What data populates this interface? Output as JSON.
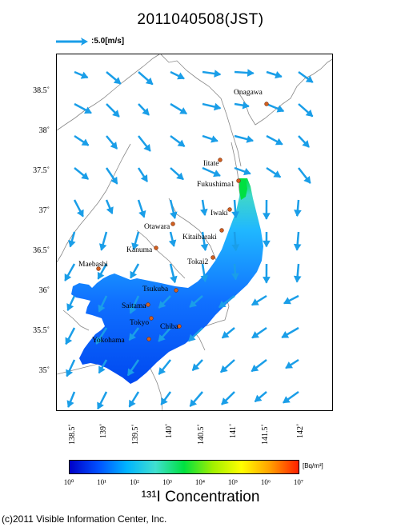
{
  "title": "2011040508(JST)",
  "scale": {
    "label": ":5.0[m/s]",
    "color": "#1a9ee8"
  },
  "lat_ticks": [
    "38.5˚",
    "38˚",
    "37.5˚",
    "37˚",
    "36.5˚",
    "36˚",
    "35.5˚",
    "35˚"
  ],
  "lon_ticks": [
    "138.5˚",
    "139˚",
    "139.5˚",
    "140˚",
    "140.5˚",
    "141˚",
    "141.5˚",
    "142˚"
  ],
  "cities": [
    {
      "name": "Onagawa"
    },
    {
      "name": "Iitate"
    },
    {
      "name": "Fukushima1"
    },
    {
      "name": "Iwaki"
    },
    {
      "name": "Otawara"
    },
    {
      "name": "Kitaibaraki"
    },
    {
      "name": "Kanuma"
    },
    {
      "name": "Tokai2"
    },
    {
      "name": "Maebashi"
    },
    {
      "name": "Tsukuba"
    },
    {
      "name": "Saitama"
    },
    {
      "name": "Tokyo"
    },
    {
      "name": "Chiba"
    },
    {
      "name": "Yokohama"
    }
  ],
  "colorbar": {
    "ticks": [
      "10⁰",
      "10¹",
      "10²",
      "10³",
      "10⁴",
      "10⁵",
      "10⁶",
      "10⁷"
    ],
    "unit": "[Bq/m³]",
    "colors": [
      "#0000c8",
      "#0050ff",
      "#00b4ff",
      "#40e0d0",
      "#00e040",
      "#a0f000",
      "#ffff00",
      "#ffa000",
      "#ff2000"
    ]
  },
  "concentration_label": "¹³¹I Concentration",
  "copyright": "(c)2011 Visible Information Center, Inc."
}
